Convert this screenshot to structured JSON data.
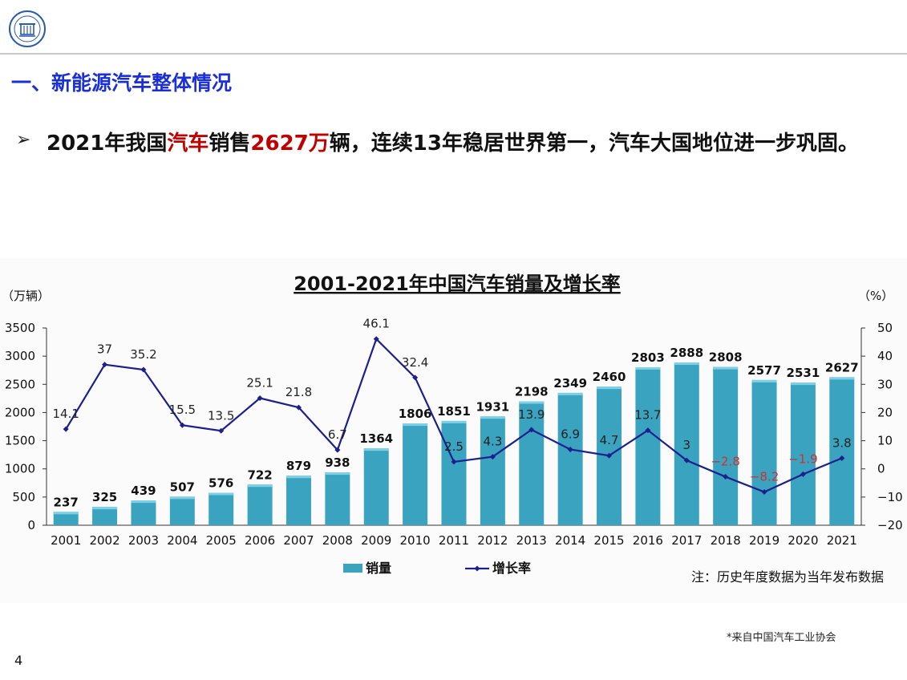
{
  "slide": {
    "section_title": "一、新能源汽车整体情况",
    "bullet": {
      "marker": "➢",
      "part1": "2021年我国",
      "part2_red": "汽车",
      "part3": "销售",
      "part4_red": "2627万",
      "part5": "辆，连续13年稳居世界第一，汽车大国地位进一步巩固。"
    },
    "source_note": "*来自中国汽车工业协会",
    "page_number": "4"
  },
  "colors": {
    "title_blue": "#1a2fd6",
    "highlight_red": "#c00000",
    "bar_teal": "#39a3c0",
    "line_navy": "#1c1f8c",
    "negative_label_red": "#d03030"
  },
  "chart_data": {
    "type": "bar",
    "title": "2001-2021年中国汽车销量及增长率",
    "y_left_label": "（万辆）",
    "y_right_label": "（%）",
    "categories": [
      "2001",
      "2002",
      "2003",
      "2004",
      "2005",
      "2006",
      "2007",
      "2008",
      "2009",
      "2010",
      "2011",
      "2012",
      "2013",
      "2014",
      "2015",
      "2016",
      "2017",
      "2018",
      "2019",
      "2020",
      "2021"
    ],
    "series": [
      {
        "name": "销量",
        "type": "bar",
        "axis": "left",
        "values": [
          237,
          325,
          439,
          507,
          576,
          722,
          879,
          938,
          1364,
          1806,
          1851,
          1931,
          2198,
          2349,
          2460,
          2803,
          2888,
          2808,
          2577,
          2531,
          2627
        ]
      },
      {
        "name": "增长率",
        "type": "line",
        "axis": "right",
        "values": [
          14.1,
          37,
          35.2,
          15.5,
          13.5,
          25.1,
          21.8,
          6.7,
          46.1,
          32.4,
          2.5,
          4.3,
          13.9,
          6.9,
          4.7,
          13.7,
          3,
          -2.8,
          -8.2,
          -1.9,
          3.8
        ],
        "labels": [
          "14.1",
          "37",
          "35.2",
          "15.5",
          "13.5",
          "25.1",
          "21.8",
          "6.7",
          "46.1",
          "32.4",
          "2.5",
          "4.3",
          "13.9",
          "6.9",
          "4.7",
          "13.7",
          "3",
          "−2.8",
          "−8.2",
          "−1.9",
          "3.8"
        ]
      }
    ],
    "y_left": {
      "min": 0,
      "max": 3500,
      "ticks": [
        "0",
        "500",
        "1000",
        "1500",
        "2000",
        "2500",
        "3000",
        "3500"
      ]
    },
    "y_right": {
      "min": -20,
      "max": 50,
      "ticks": [
        "−20",
        "−10",
        "0",
        "10",
        "20",
        "30",
        "40",
        "50"
      ]
    },
    "legend": [
      "销量",
      "增长率"
    ],
    "legend_position": "bottom",
    "note": "注：历史年度数据为当年发布数据",
    "grid": false
  }
}
